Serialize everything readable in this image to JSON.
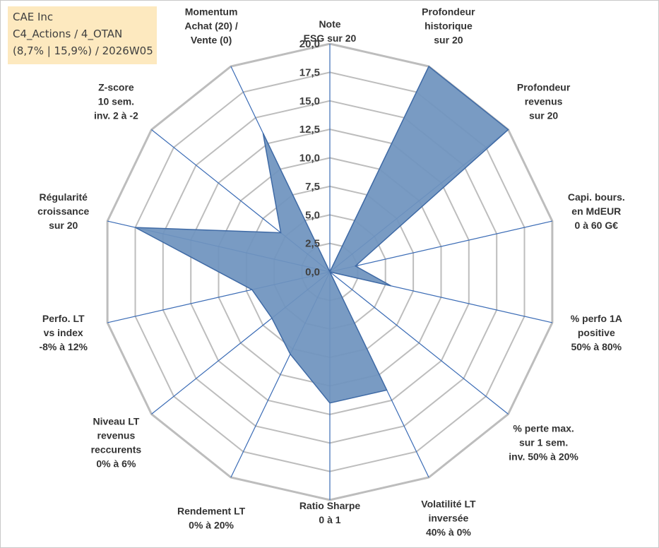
{
  "info": {
    "name": "CAE Inc",
    "category": "C4_Actions / 4_OTAN",
    "stats": "(8,7% | 15,9%) / 2026W05"
  },
  "colors": {
    "fill": "#6f93be",
    "stroke": "#3f6aa5",
    "grid": "#bdbdbd",
    "spoke": "#3a6bb5",
    "infobox": "#fde9bf"
  },
  "chart_data": {
    "type": "radar",
    "rmin": 0,
    "rmax": 20,
    "tick_values": [
      0,
      2.5,
      5,
      7.5,
      10,
      12.5,
      15,
      17.5,
      20
    ],
    "tick_labels": [
      "0,0",
      "2,5",
      "5,0",
      "7,5",
      "10,0",
      "12,5",
      "15,0",
      "17,5",
      "20,0"
    ],
    "axes": [
      {
        "lines": [
          "Note",
          "ESG sur 20"
        ],
        "value": 0
      },
      {
        "lines": [
          "Profondeur",
          "historique",
          "sur 20"
        ],
        "value": 20
      },
      {
        "lines": [
          "Profondeur",
          "revenus",
          "sur 20"
        ],
        "value": 20
      },
      {
        "lines": [
          "Capi. bours.",
          "en MdEUR",
          "0 à 60 G€"
        ],
        "value": 2.3
      },
      {
        "lines": [
          "% perfo 1A",
          "positive",
          "50% à 80%"
        ],
        "value": 5.5
      },
      {
        "lines": [
          "% perte max.",
          "sur 1 sem.",
          "inv. 50% à 20%"
        ],
        "value": 0
      },
      {
        "lines": [
          "Volatilité LT",
          "inversée",
          "40% à 0%"
        ],
        "value": 11.5
      },
      {
        "lines": [
          "Ratio Sharpe",
          "0 à 1"
        ],
        "value": 11.5
      },
      {
        "lines": [
          "Rendement LT",
          "0% à 20%"
        ],
        "value": 8
      },
      {
        "lines": [
          "Niveau LT",
          "revenus",
          "reccurents",
          "0% à 6%"
        ],
        "value": 6.5
      },
      {
        "lines": [
          "Perfo. LT",
          "vs index",
          "-8% à 12%"
        ],
        "value": 7
      },
      {
        "lines": [
          "Régularité",
          "croissance",
          "sur 20"
        ],
        "value": 17.5
      },
      {
        "lines": [
          "Z-score",
          "10 sem.",
          "inv. 2 à -2"
        ],
        "value": 5.5
      },
      {
        "lines": [
          "Momentum",
          "Achat (20) /",
          "Vente (0)"
        ],
        "value": 13.5
      }
    ]
  }
}
